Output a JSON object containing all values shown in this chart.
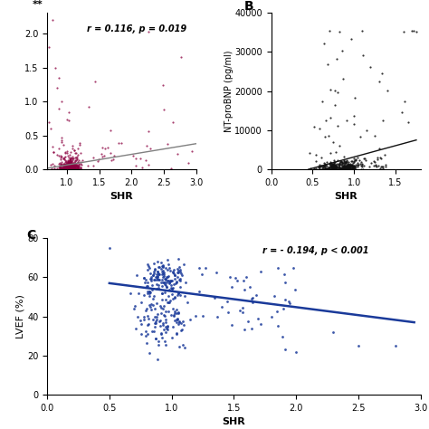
{
  "panel_A": {
    "label": "**",
    "annotation": "r = 0.116, p = 0.019",
    "xlabel": "SHR",
    "ylabel": "",
    "xlim": [
      0.7,
      3.0
    ],
    "xticks": [
      1.0,
      1.5,
      2.0,
      2.5,
      3.0
    ],
    "color": "#8B0040",
    "line_color": "#808080",
    "line_x": [
      0.72,
      3.0
    ],
    "line_y": [
      0.02,
      0.38
    ],
    "seed": 42,
    "n_dense": 350,
    "n_sparse": 50
  },
  "panel_B": {
    "label": "B",
    "annotation": "",
    "xlabel": "SHR",
    "ylabel": "NT-proBNP (pg/ml)",
    "xlim": [
      0.0,
      1.8
    ],
    "ylim": [
      0,
      40000
    ],
    "xticks": [
      0.0,
      0.5,
      1.0,
      1.5
    ],
    "yticks": [
      0,
      10000,
      20000,
      30000,
      40000
    ],
    "color": "#111111",
    "line_color": "#111111",
    "line_x": [
      0.45,
      1.75
    ],
    "line_y": [
      0,
      7500
    ],
    "seed": 7
  },
  "panel_C": {
    "label": "C",
    "annotation": "r = - 0.194, p < 0.001",
    "xlabel": "SHR",
    "ylabel": "LVEF (%)",
    "xlim": [
      0.0,
      3.0
    ],
    "ylim": [
      0,
      80
    ],
    "xticks": [
      0.0,
      0.5,
      1.0,
      1.5,
      2.0,
      2.5,
      3.0
    ],
    "yticks": [
      0,
      20,
      40,
      60,
      80
    ],
    "color": "#1a3a9a",
    "line_color": "#1a3a9a",
    "line_x": [
      0.5,
      2.95
    ],
    "line_y": [
      57,
      37
    ],
    "seed": 99
  },
  "fig_bg": "#ffffff",
  "annot_fontsize": 7,
  "tick_fontsize": 7,
  "axis_label_fontsize": 8
}
